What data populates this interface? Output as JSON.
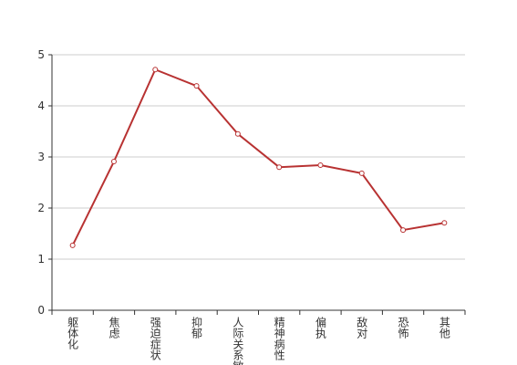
{
  "chart_data": {
    "type": "line",
    "categories": [
      "躯体化",
      "焦虑",
      "强迫症状",
      "抑郁",
      "人际关系敏感",
      "精神病性",
      "偏执",
      "敌对",
      "恐怖",
      "其他"
    ],
    "series": [
      {
        "color": "#b83232",
        "values": [
          1.27,
          2.91,
          4.71,
          4.39,
          3.45,
          2.8,
          2.84,
          2.68,
          1.57,
          1.71
        ]
      }
    ],
    "ylim": [
      0,
      5
    ],
    "yticks": [
      0,
      1,
      2,
      3,
      4,
      5
    ],
    "grid": true
  }
}
